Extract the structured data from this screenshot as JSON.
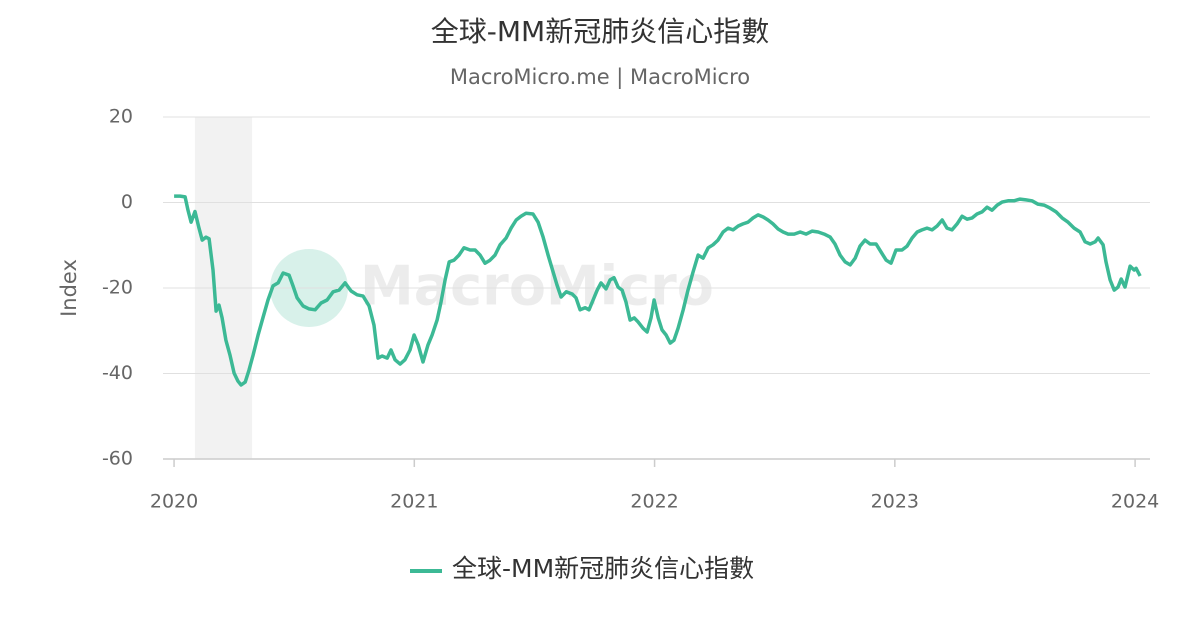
{
  "chart_data": {
    "type": "line",
    "title": "全球-MM新冠肺炎信心指數",
    "subtitle": "MacroMicro.me | MacroMicro",
    "watermark": "MacroMicro",
    "y_label": "Index",
    "xlim": [
      2019.954,
      2024.062
    ],
    "xticks": [
      2020,
      2021,
      2022,
      2023,
      2024
    ],
    "ylim": [
      -60,
      20
    ],
    "yticks": [
      -60,
      -40,
      -20,
      0,
      20
    ],
    "grid": true,
    "legend": "bottom",
    "shaded_regions": [
      [
        2020.087,
        2020.325
      ]
    ],
    "x": [
      2020.0,
      2020.025,
      2020.046,
      2020.058,
      2020.071,
      2020.087,
      2020.104,
      2020.117,
      2020.133,
      2020.146,
      2020.162,
      2020.175,
      2020.187,
      2020.2,
      2020.216,
      2020.233,
      2020.25,
      2020.266,
      2020.279,
      2020.296,
      2020.312,
      2020.329,
      2020.35,
      2020.37,
      2020.391,
      2020.412,
      2020.433,
      2020.454,
      2020.479,
      2020.495,
      2020.512,
      2020.537,
      2020.562,
      2020.587,
      2020.612,
      2020.637,
      2020.662,
      2020.687,
      2020.712,
      2020.737,
      2020.762,
      2020.787,
      2020.812,
      2020.832,
      2020.849,
      2020.866,
      2020.887,
      2020.903,
      2020.92,
      2020.941,
      2020.961,
      2020.982,
      2020.999,
      2021.016,
      2021.036,
      2021.057,
      2021.074,
      2021.095,
      2021.111,
      2021.128,
      2021.145,
      2021.165,
      2021.186,
      2021.207,
      2021.232,
      2021.253,
      2021.274,
      2021.294,
      2021.315,
      2021.336,
      2021.357,
      2021.382,
      2021.403,
      2021.424,
      2021.444,
      2021.465,
      2021.494,
      2021.515,
      2021.536,
      2021.557,
      2021.578,
      2021.594,
      2021.611,
      2021.632,
      2021.657,
      2021.673,
      2021.69,
      2021.711,
      2021.727,
      2021.744,
      2021.761,
      2021.777,
      2021.798,
      2021.815,
      2021.831,
      2021.848,
      2021.865,
      2021.881,
      2021.898,
      2021.915,
      2021.931,
      2021.952,
      2021.969,
      2021.985,
      2021.998,
      2022.015,
      2022.031,
      2022.048,
      2022.065,
      2022.081,
      2022.098,
      2022.119,
      2022.139,
      2022.16,
      2022.181,
      2022.202,
      2022.223,
      2022.243,
      2022.264,
      2022.285,
      2022.306,
      2022.327,
      2022.348,
      2022.368,
      2022.389,
      2022.41,
      2022.431,
      2022.452,
      2022.472,
      2022.493,
      2022.514,
      2022.535,
      2022.556,
      2022.581,
      2022.606,
      2022.631,
      2022.656,
      2022.681,
      2022.706,
      2022.731,
      2022.751,
      2022.772,
      2022.793,
      2022.814,
      2022.835,
      2022.855,
      2022.876,
      2022.897,
      2022.922,
      2022.943,
      2022.964,
      2022.984,
      2023.005,
      2023.03,
      2023.051,
      2023.072,
      2023.093,
      2023.113,
      2023.134,
      2023.155,
      2023.176,
      2023.197,
      2023.217,
      2023.238,
      2023.259,
      2023.28,
      2023.301,
      2023.322,
      2023.342,
      2023.363,
      2023.384,
      2023.405,
      2023.426,
      2023.446,
      2023.471,
      2023.496,
      2023.521,
      2023.546,
      2023.571,
      2023.596,
      2023.621,
      2023.646,
      2023.671,
      2023.696,
      2023.721,
      2023.746,
      2023.771,
      2023.792,
      2023.813,
      2023.834,
      2023.846,
      2023.867,
      2023.879,
      2023.896,
      2023.913,
      2023.929,
      2023.942,
      2023.958,
      2023.979,
      2023.996,
      2024.004,
      2024.021
    ],
    "series": [
      {
        "name": "全球-MM新冠肺炎信心指數",
        "color": "#3cb995",
        "values": [
          1.5,
          1.5,
          1.3,
          -1.8,
          -4.6,
          -2.1,
          -6,
          -8.8,
          -8.1,
          -8.5,
          -15.8,
          -25.4,
          -24,
          -27,
          -32.2,
          -35.7,
          -39.9,
          -41.8,
          -42.7,
          -42,
          -39.2,
          -35.7,
          -31,
          -27,
          -22.8,
          -19.5,
          -18.8,
          -16.5,
          -17,
          -19.5,
          -22.3,
          -24.2,
          -24.9,
          -25.1,
          -23.5,
          -22.8,
          -20.9,
          -20.5,
          -18.8,
          -20.7,
          -21.6,
          -21.9,
          -24.2,
          -28.7,
          -36.4,
          -35.9,
          -36.4,
          -34.5,
          -36.8,
          -37.8,
          -36.8,
          -34.5,
          -31,
          -33.3,
          -37.3,
          -33.3,
          -31,
          -27.5,
          -23.3,
          -18.1,
          -13.9,
          -13.5,
          -12.3,
          -10.6,
          -11.1,
          -11.1,
          -12.3,
          -14.2,
          -13.5,
          -12.3,
          -9.9,
          -8.3,
          -6,
          -4.1,
          -3.2,
          -2.5,
          -2.7,
          -4.6,
          -8.1,
          -12.3,
          -16.3,
          -19.3,
          -22.1,
          -20.9,
          -21.4,
          -22.3,
          -25.1,
          -24.6,
          -25.1,
          -22.8,
          -20.5,
          -18.8,
          -20.2,
          -18.1,
          -17.6,
          -19.8,
          -20.5,
          -23.3,
          -27.5,
          -27,
          -27.9,
          -29.4,
          -30.3,
          -27,
          -22.8,
          -27,
          -29.8,
          -31,
          -32.9,
          -32.2,
          -29.4,
          -25.1,
          -20.5,
          -16.3,
          -12.3,
          -13,
          -10.6,
          -9.9,
          -8.8,
          -6.9,
          -6,
          -6.4,
          -5.5,
          -5,
          -4.6,
          -3.6,
          -2.9,
          -3.4,
          -4.1,
          -5,
          -6.2,
          -6.9,
          -7.4,
          -7.4,
          -6.9,
          -7.4,
          -6.7,
          -6.9,
          -7.4,
          -8.1,
          -9.7,
          -12.3,
          -13.9,
          -14.6,
          -13,
          -10.2,
          -8.8,
          -9.7,
          -9.7,
          -11.6,
          -13.5,
          -14.2,
          -11.1,
          -11.1,
          -10.2,
          -8.3,
          -6.9,
          -6.4,
          -6,
          -6.4,
          -5.5,
          -4.1,
          -6,
          -6.4,
          -5,
          -3.2,
          -3.9,
          -3.6,
          -2.7,
          -2.2,
          -1.1,
          -1.8,
          -0.6,
          0.1,
          0.4,
          0.4,
          0.8,
          0.6,
          0.4,
          -0.4,
          -0.6,
          -1.3,
          -2.2,
          -3.6,
          -4.6,
          -6,
          -6.9,
          -9.2,
          -9.7,
          -9.2,
          -8.3,
          -9.9,
          -13.9,
          -18.1,
          -20.5,
          -19.8,
          -17.9,
          -19.8,
          -14.9,
          -15.8,
          -15.4,
          -17.2
        ]
      }
    ]
  }
}
